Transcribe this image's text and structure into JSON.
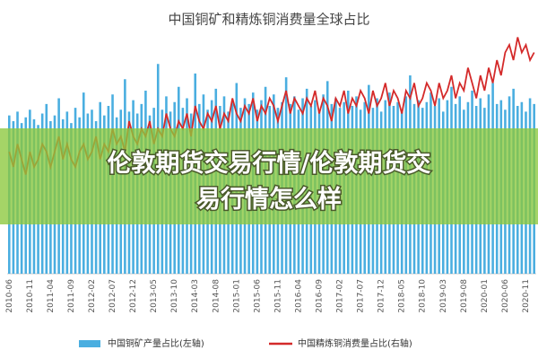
{
  "chart_data": {
    "type": "bar_line",
    "title": "中国铜矿和精炼铜消费量全球占比",
    "categories": [
      "2010-06",
      null,
      null,
      null,
      null,
      "2010-11",
      null,
      null,
      null,
      null,
      "2011-04",
      null,
      null,
      null,
      null,
      "2011-09",
      null,
      null,
      null,
      null,
      "2012-02",
      null,
      null,
      null,
      null,
      "2012-07",
      null,
      null,
      null,
      null,
      "2012-12",
      null,
      null,
      null,
      null,
      "2013-05",
      null,
      null,
      null,
      null,
      "2013-10",
      null,
      null,
      null,
      null,
      "2014-03",
      null,
      null,
      null,
      null,
      "2014-08",
      null,
      null,
      null,
      null,
      "2015-01",
      null,
      null,
      null,
      null,
      "2015-06",
      null,
      null,
      null,
      null,
      "2015-11",
      null,
      null,
      null,
      null,
      "2016-04",
      null,
      null,
      null,
      null,
      "2016-09",
      null,
      null,
      null,
      null,
      "2017-02",
      null,
      null,
      null,
      null,
      "2017-07",
      null,
      null,
      null,
      null,
      "2017-12",
      null,
      null,
      null,
      null,
      "2018-05",
      null,
      null,
      null,
      null,
      "2018-10",
      null,
      null,
      null,
      null,
      "2019-03",
      null,
      null,
      null,
      null,
      "2019-08",
      null,
      null,
      null,
      null,
      "2020-01",
      null,
      null,
      null,
      null,
      "2020-06",
      null,
      null,
      null,
      null,
      "2020-11",
      null,
      null
    ],
    "series": [
      {
        "name": "中国铜矿产量占比(左轴)",
        "type": "bar",
        "color": "#4aaee0",
        "values": [
          8.3,
          8.0,
          8.5,
          7.9,
          8.2,
          8.6,
          8.1,
          7.8,
          8.4,
          8.9,
          8.0,
          8.3,
          9.2,
          8.1,
          8.5,
          7.9,
          8.7,
          8.2,
          9.5,
          8.4,
          8.6,
          8.0,
          9.0,
          8.3,
          8.8,
          9.4,
          8.2,
          8.6,
          10.2,
          8.5,
          9.1,
          8.4,
          8.9,
          9.6,
          8.3,
          8.7,
          11.0,
          8.6,
          9.3,
          8.5,
          9.0,
          9.8,
          8.7,
          9.2,
          8.4,
          10.5,
          8.9,
          9.4,
          8.6,
          9.1,
          9.7,
          8.8,
          9.3,
          8.5,
          9.0,
          10.0,
          8.7,
          9.2,
          8.9,
          9.5,
          8.6,
          9.1,
          9.8,
          8.8,
          9.4,
          8.7,
          9.0,
          10.3,
          8.9,
          9.3,
          8.6,
          9.2,
          9.7,
          8.8,
          9.1,
          8.5,
          9.4,
          10.1,
          8.9,
          9.2,
          8.7,
          9.0,
          9.6,
          8.8,
          9.3,
          8.6,
          9.0,
          9.9,
          8.7,
          9.2,
          8.5,
          9.1,
          9.5,
          8.8,
          9.0,
          8.6,
          9.3,
          10.4,
          8.9,
          9.1,
          8.7,
          9.0,
          9.5,
          8.8,
          9.2,
          8.5,
          9.1,
          9.8,
          8.9,
          9.3,
          8.6,
          9.0,
          9.6,
          8.8,
          9.2,
          8.7,
          9.4,
          10.0,
          8.9,
          9.1,
          8.6,
          9.3,
          9.7,
          8.8,
          9.0,
          8.5,
          9.2,
          8.9
        ]
      },
      {
        "name": "中国精炼铜消费量占比(右轴)",
        "type": "line",
        "axis": "y2",
        "color": "#d42a2a",
        "values": [
          46,
          44,
          47,
          45,
          43,
          46,
          44,
          45,
          47,
          46,
          44,
          46,
          48,
          45,
          47,
          45,
          44,
          46,
          47,
          45,
          46,
          48,
          45,
          47,
          46,
          49,
          47,
          48,
          46,
          50,
          48,
          47,
          49,
          48,
          50,
          47,
          49,
          48,
          51,
          49,
          48,
          50,
          49,
          51,
          48,
          52,
          50,
          49,
          51,
          50,
          52,
          49,
          51,
          50,
          53,
          51,
          50,
          52,
          51,
          53,
          50,
          52,
          51,
          53,
          52,
          50,
          52,
          54,
          51,
          53,
          52,
          51,
          53,
          52,
          54,
          51,
          53,
          52,
          50,
          53,
          52,
          54,
          51,
          53,
          52,
          54,
          53,
          51,
          54,
          52,
          53,
          55,
          52,
          54,
          53,
          51,
          54,
          53,
          55,
          52,
          53,
          55,
          54,
          52,
          55,
          53,
          54,
          56,
          53,
          55,
          54,
          57,
          55,
          53,
          56,
          54,
          57,
          55,
          58,
          56,
          59,
          60,
          58,
          61,
          59,
          60,
          58,
          59
        ]
      }
    ],
    "ylim": [
      0,
      12
    ],
    "y2lim": [
      30,
      60
    ],
    "legend": "bottom"
  },
  "overlay": {
    "lines": [
      "伦敦期货交易行情/伦敦期货交易行情怎么样",
      ""
    ]
  }
}
